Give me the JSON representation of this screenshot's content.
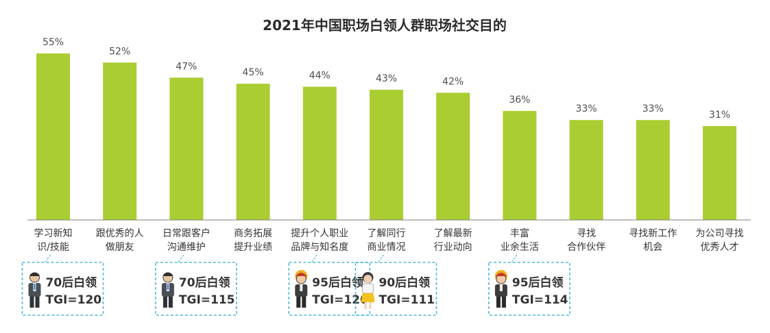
{
  "chart_data": {
    "type": "bar",
    "title": "2021年中国职场白领人群职场社交目的",
    "xlabel": "",
    "ylabel": "",
    "ylim": [
      0,
      60
    ],
    "grid": false,
    "legend": "none",
    "bar_color": "#AACD32",
    "categories": [
      [
        "学习新知",
        "识/技能"
      ],
      [
        "跟优秀的人",
        "做朋友"
      ],
      [
        "日常跟客户",
        "沟通维护"
      ],
      [
        "商务拓展",
        "提升业绩"
      ],
      [
        "提升个人职业",
        "品牌与知名度"
      ],
      [
        "了解同行",
        "商业情况"
      ],
      [
        "了解最新",
        "行业动向"
      ],
      [
        "丰富",
        "业余生活"
      ],
      [
        "寻找",
        "合作伙伴"
      ],
      [
        "寻找新工作",
        "机会"
      ],
      [
        "为公司寻找",
        "优秀人才"
      ]
    ],
    "values": [
      55,
      52,
      47,
      45,
      44,
      43,
      42,
      36,
      33,
      33,
      31
    ],
    "value_labels": [
      "55%",
      "52%",
      "47%",
      "45%",
      "44%",
      "43%",
      "42%",
      "36%",
      "33%",
      "33%",
      "31%"
    ],
    "annotations": [
      {
        "category_index": 0,
        "group": "70后白领",
        "tgi": "TGI=120",
        "figure": "male"
      },
      {
        "category_index": 2,
        "group": "70后白领",
        "tgi": "TGI=115",
        "figure": "male"
      },
      {
        "category_index": 4,
        "group": "95后白领",
        "tgi": "TGI=120",
        "figure": "young"
      },
      {
        "category_index": 5,
        "group": "90后白领",
        "tgi": "TGI=111",
        "figure": "female"
      },
      {
        "category_index": 7,
        "group": "95后白领",
        "tgi": "TGI=114",
        "figure": "young"
      }
    ]
  },
  "colors": {
    "bar": "#AACD32",
    "axis": "#7f7f7f",
    "callout_border": "#4DB8D8"
  }
}
